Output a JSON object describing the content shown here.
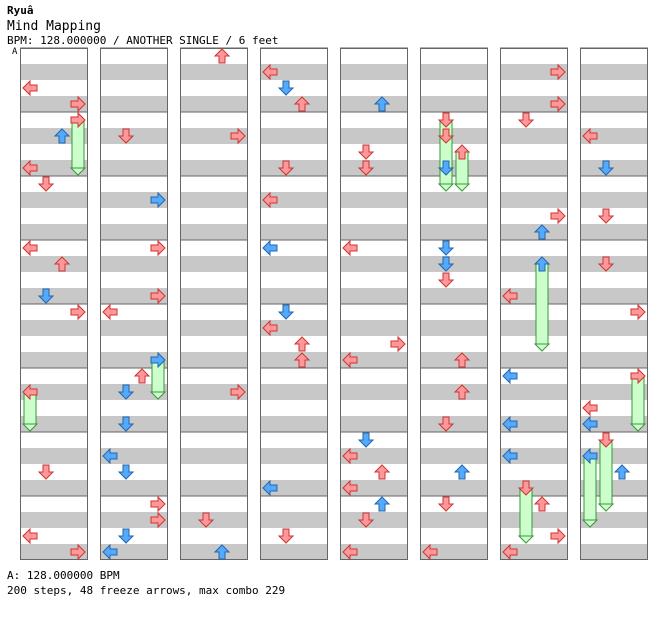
{
  "song": {
    "artist": "Ryuâ",
    "title": "Mind Mapping",
    "info": "BPM: 128.000000 / ANOTHER SINGLE / 6 feet",
    "section_marker": "A"
  },
  "footer": {
    "bpm_line": "A: 128.000000 BPM",
    "stats_line": "200 steps, 48 freeze arrows, max combo 229"
  },
  "colors": {
    "arrow_red": "#ff9999",
    "arrow_blue": "#55aaff",
    "freeze_green": "#ccffcc",
    "stripe_gray": "#c8c8c8"
  }
}
